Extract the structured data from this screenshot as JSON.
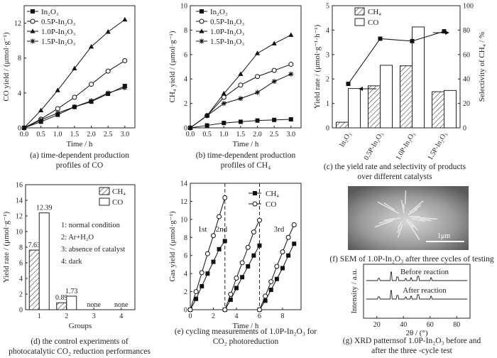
{
  "chart_data": [
    {
      "type": "line",
      "panel": "a",
      "xlabel": "Time / h",
      "ylabel": "CO yield / (μmol·g⁻¹)",
      "xlim": [
        0,
        3.3
      ],
      "ylim": [
        0,
        14
      ],
      "xticks": [
        "0.0",
        "0.5",
        "1.0",
        "1.5",
        "2.0",
        "2.5",
        "3.0"
      ],
      "yticks": [
        "0",
        "4",
        "8",
        "12"
      ],
      "x": [
        0,
        0.5,
        1.0,
        1.5,
        2.0,
        2.5,
        3.0
      ],
      "series": [
        {
          "name": "In₂O₃",
          "marker": "square",
          "values": [
            0,
            0.7,
            1.5,
            2.4,
            3.0,
            3.9,
            4.8
          ]
        },
        {
          "name": "0.5P-In₂O₃",
          "marker": "circle-open",
          "values": [
            0,
            1.0,
            2.2,
            3.5,
            5.0,
            6.5,
            7.7
          ]
        },
        {
          "name": "1.0P-In₂O₃",
          "marker": "triangle",
          "values": [
            0,
            2.0,
            4.3,
            6.8,
            9.3,
            11.0,
            12.4
          ]
        },
        {
          "name": "1.5P-In₂O₃",
          "marker": "star",
          "values": [
            0,
            0.9,
            1.7,
            2.4,
            3.1,
            4.0,
            4.6
          ]
        }
      ],
      "caption": [
        "(a) time-dependent production",
        "profiles of CO"
      ]
    },
    {
      "type": "line",
      "panel": "b",
      "xlabel": "Time / h",
      "ylabel": "CH₄ yield / (μmol·g⁻¹)",
      "xlim": [
        0,
        3.3
      ],
      "ylim": [
        0,
        10
      ],
      "xticks": [
        "0.0",
        "0.5",
        "1.0",
        "1.5",
        "2.0",
        "2.5",
        "3.0"
      ],
      "yticks": [
        "0",
        "2",
        "4",
        "6",
        "8",
        "10"
      ],
      "x": [
        0,
        0.5,
        1.0,
        1.5,
        2.0,
        2.5,
        3.0
      ],
      "series": [
        {
          "name": "In₂O₃",
          "marker": "square",
          "values": [
            0,
            0.2,
            0.4,
            0.5,
            0.6,
            0.65,
            0.7
          ]
        },
        {
          "name": "0.5P-In₂O₃",
          "marker": "circle-open",
          "values": [
            0,
            1.0,
            2.5,
            3.5,
            4.2,
            4.7,
            5.2
          ]
        },
        {
          "name": "1.0P-In₂O₃",
          "marker": "triangle",
          "values": [
            0,
            1.0,
            2.8,
            4.4,
            6.1,
            6.9,
            7.6
          ]
        },
        {
          "name": "1.5P-In₂O₃",
          "marker": "star",
          "values": [
            0,
            1.0,
            2.0,
            2.4,
            2.9,
            3.8,
            4.4
          ]
        }
      ],
      "caption": [
        "(b) time-dependent production",
        "profiles of CH₄"
      ]
    },
    {
      "type": "bar",
      "panel": "c",
      "categories": [
        "In₂O₃",
        "0.5P-In₂O₃",
        "1.0P-In₂O₃",
        "1.5P-In₂O₃"
      ],
      "ylabel": "Yield rate / (μmol·g⁻¹·h⁻¹)",
      "ylabel_right": "Selectivity of CH₄ / %",
      "ylim": [
        0,
        5
      ],
      "ylim_right": [
        0,
        100
      ],
      "yticks": [
        "0",
        "1",
        "2",
        "3",
        "4",
        "5"
      ],
      "yticks_right": [
        "0",
        "20",
        "40",
        "60",
        "80",
        "100"
      ],
      "series": [
        {
          "name": "CH₄",
          "pattern": "hatched",
          "values": [
            0.23,
            1.72,
            2.54,
            1.48
          ]
        },
        {
          "name": "CO",
          "pattern": "open",
          "values": [
            1.61,
            2.56,
            4.13,
            1.53
          ]
        }
      ],
      "selectivity": [
        36,
        73,
        71,
        79
      ],
      "caption": [
        "(c) the yield rate and selectivity of products",
        "over different catalysts"
      ]
    },
    {
      "type": "bar",
      "panel": "d",
      "categories": [
        "1",
        "2",
        "3",
        "4"
      ],
      "xlabel": "Groups",
      "ylabel": "Yield rate / (μmol·g⁻¹)",
      "ylim": [
        0,
        16
      ],
      "yticks": [
        "0",
        "2",
        "4",
        "6",
        "8",
        "10",
        "12",
        "14",
        "16"
      ],
      "series": [
        {
          "name": "CH₄",
          "pattern": "hatched",
          "values": [
            7.63,
            0.89,
            0,
            0
          ]
        },
        {
          "name": "CO",
          "pattern": "open",
          "values": [
            12.39,
            1.73,
            0,
            0
          ]
        }
      ],
      "value_labels": {
        "CH₄": [
          "7.63",
          "0.89",
          "none",
          "none"
        ],
        "CO": [
          "12.39",
          "1.73",
          "",
          ""
        ]
      },
      "annotations": [
        "1: normal condition",
        "2: Ar+H₂O",
        "3: absence of catalyst",
        "4: dark"
      ],
      "caption": [
        "(d) the control experiments of",
        "photocatalytic CO₂ reduction performances"
      ]
    },
    {
      "type": "line",
      "panel": "e",
      "xlabel": "Time / h",
      "ylabel": "Gas yield / (μmol·g⁻¹)",
      "xlim": [
        0,
        9.6
      ],
      "ylim": [
        0,
        14
      ],
      "xticks": [
        "0",
        "2",
        "4",
        "6",
        "8"
      ],
      "yticks": [
        "0",
        "2",
        "4",
        "6",
        "8",
        "10",
        "12",
        "14"
      ],
      "cycle_labels": [
        "1st",
        "2nd",
        "3rd"
      ],
      "cycle_dividers": [
        3,
        6
      ],
      "x": [
        0,
        0.5,
        1,
        1.5,
        2,
        2.5,
        3,
        3.5,
        4,
        4.5,
        5,
        5.5,
        6,
        6.5,
        7,
        7.5,
        8,
        8.5,
        9
      ],
      "series": [
        {
          "name": "CH₄",
          "marker": "square",
          "values": [
            0,
            1.2,
            2.6,
            4.0,
            5.3,
            6.7,
            7.6,
            1.1,
            2.4,
            3.6,
            4.8,
            6.0,
            7.1,
            1.0,
            2.2,
            3.4,
            4.6,
            6.0,
            7.3
          ]
        },
        {
          "name": "CO",
          "marker": "circle-open",
          "values": [
            0,
            2.0,
            4.1,
            6.2,
            8.2,
            10.3,
            12.4,
            1.7,
            3.5,
            5.2,
            6.9,
            8.6,
            9.9,
            1.5,
            3.1,
            4.8,
            6.4,
            8.0,
            9.4
          ]
        }
      ],
      "caption": [
        "(e) cycling measurements of 1.0P-In₂O₃ for",
        "CO₂ photoreduction"
      ]
    },
    {
      "type": "other",
      "panel": "f",
      "scale_label": "1μm",
      "caption": [
        "(f) SEM of 1.0P-In₂O₃ after three cycles of testing"
      ]
    },
    {
      "type": "line",
      "panel": "g",
      "xlabel": "2θ / (°)",
      "ylabel": "Intensity / a.u.",
      "xlim": [
        10,
        90
      ],
      "xticks": [
        "20",
        "40",
        "60",
        "80"
      ],
      "traces": [
        "Before reaction",
        "After reaction"
      ],
      "peaks_2theta": [
        21.5,
        30.6,
        35.5,
        41.8,
        45.7,
        51.0,
        60.7
      ],
      "caption": [
        "(g) XRD patternsof 1.0P-In₂O₃ before and",
        "after the three -cycle test"
      ]
    }
  ]
}
